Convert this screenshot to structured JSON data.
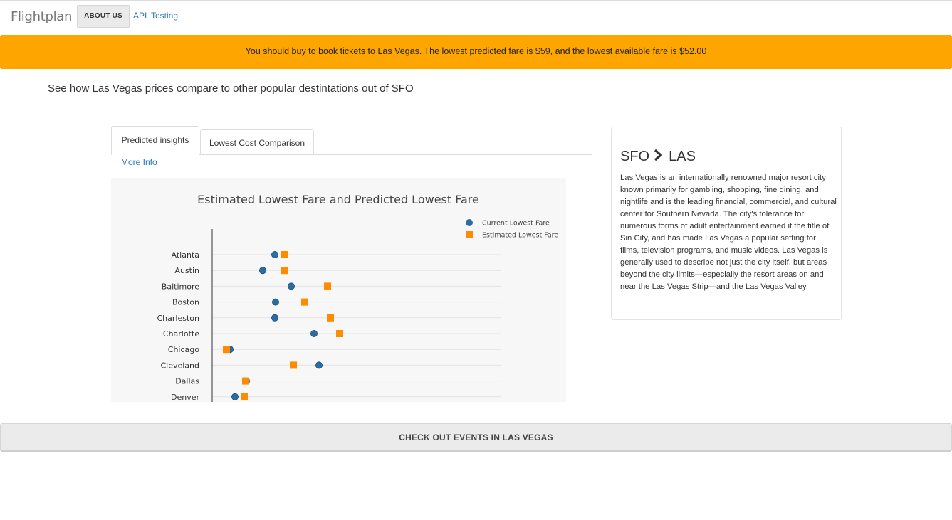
{
  "navbar": {
    "brand": "Flightplan",
    "about_label": "ABOUT US",
    "api_label": "API",
    "testing_label": "Testing"
  },
  "banner": {
    "text": "You should buy to book tickets to Las Vegas. The lowest predicted fare is $59, and the lowest available fare is $52.00",
    "color": "#ffa500"
  },
  "subtitle": "See how Las Vegas prices compare to other popular destintations out of SFO",
  "tabs": [
    {
      "label": "Predicted insights",
      "active": true
    },
    {
      "label": "Lowest Cost Comparison",
      "active": false
    }
  ],
  "more_info_label": "More Info",
  "chart_data": {
    "type": "scatter",
    "title": "Estimated Lowest Fare and Predicted Lowest Fare",
    "categories": [
      "Atlanta",
      "Austin",
      "Baltimore",
      "Boston",
      "Charleston",
      "Charlotte",
      "Chicago",
      "Cleveland",
      "Dallas",
      "Denver"
    ],
    "series": [
      {
        "name": "Current Lowest Fare",
        "marker": "circle",
        "color": "#2c6ca4",
        "values": [
          88,
          71,
          111,
          89,
          88,
          143,
          25,
          150,
          48,
          32
        ]
      },
      {
        "name": "Estimated Lowest Fare",
        "marker": "square",
        "color": "#ff8c00",
        "values": [
          101,
          102,
          162,
          130,
          166,
          179,
          20,
          114,
          47,
          45
        ]
      }
    ],
    "xlim": [
      0,
      406
    ],
    "grid": true,
    "legend_position": "top-right"
  },
  "info_card": {
    "origin": "SFO",
    "destination": "LAS",
    "description": "Las Vegas is an internationally renowned major resort city known primarily for gambling, shopping, fine dining, and nightlife and is the leading financial, commercial, and cultural center for Southern Nevada. The city's tolerance for numerous forms of adult entertainment earned it the title of Sin City, and has made Las Vegas a popular setting for films, television programs, and music videos. Las Vegas is generally used to describe not just the city itself, but areas beyond the city limits—especially the resort areas on and near the Las Vegas Strip—and the Las Vegas Valley."
  },
  "events_button_label": "CHECK OUT EVENTS IN LAS VEGAS"
}
